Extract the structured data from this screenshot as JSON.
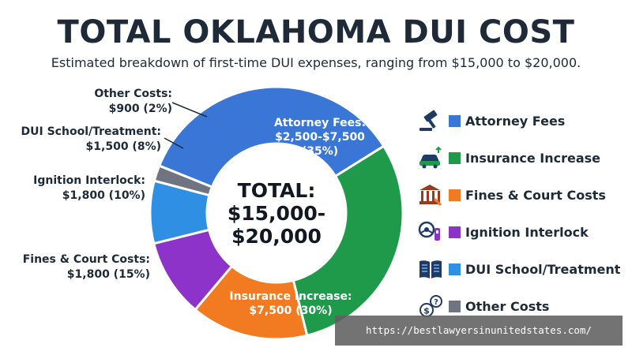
{
  "header": {
    "title": "TOTAL OKLAHOMA DUI COST",
    "subtitle": "Estimated breakdown of first-time DUI expenses, ranging from $15,000 to $20,000."
  },
  "chart_data": {
    "type": "pie",
    "variant": "donut",
    "title": "TOTAL OKLAHOMA DUI COST",
    "subtitle": "Estimated breakdown of first-time DUI expenses, ranging from $15,000 to $20,000.",
    "center_label": [
      "TOTAL:",
      "$15,000-",
      "$20,000"
    ],
    "legend_position": "right",
    "slices": [
      {
        "name": "Attorney Fees",
        "amount": "$2,500-$7,500",
        "percent": 35,
        "color": "#3a76d6",
        "label": [
          "Attorney Fees:",
          "$2,500-$7,500",
          "(35%)"
        ]
      },
      {
        "name": "Insurance Increase",
        "amount": "$7,500",
        "percent": 30,
        "color": "#1f9a4b",
        "label": [
          "Insurance Increase:",
          "$7,500 (30%)"
        ]
      },
      {
        "name": "Fines & Court Costs",
        "amount": "$1,800",
        "percent": 15,
        "color": "#f27b21",
        "label": [
          "Fines & Court Costs:",
          "$1,800 (15%)"
        ]
      },
      {
        "name": "Ignition Interlock",
        "amount": "$1,800",
        "percent": 10,
        "color": "#8d33c9",
        "label": [
          "Ignition Interlock:",
          "$1,800 (10%)"
        ]
      },
      {
        "name": "DUI School/Treatment",
        "amount": "$1,500",
        "percent": 8,
        "color": "#2e8fe3",
        "label": [
          "DUI School/Treatment:",
          "$1,500 (8%)"
        ]
      },
      {
        "name": "Other Costs",
        "amount": "$900",
        "percent": 2,
        "color": "#6f7480",
        "label": [
          "Other Costs:",
          "$900 (2%)"
        ]
      }
    ]
  },
  "legend": {
    "items": [
      {
        "label": "Attorney Fees",
        "icon": "gavel-icon",
        "color": "#3a76d6"
      },
      {
        "label": "Insurance Increase",
        "icon": "car-rising-cost-icon",
        "color": "#1f9a4b"
      },
      {
        "label": "Fines & Court Costs",
        "icon": "courthouse-icon",
        "color": "#f27b21"
      },
      {
        "label": "Ignition Interlock",
        "icon": "breathalyzer-icon",
        "color": "#8d33c9"
      },
      {
        "label": "DUI School/Treatment",
        "icon": "open-book-icon",
        "color": "#2e8fe3"
      },
      {
        "label": "Other Costs",
        "icon": "money-question-icon",
        "color": "#6f7480"
      }
    ]
  },
  "watermark": {
    "url": "https://bestlawyersinunitedstates.com/"
  }
}
